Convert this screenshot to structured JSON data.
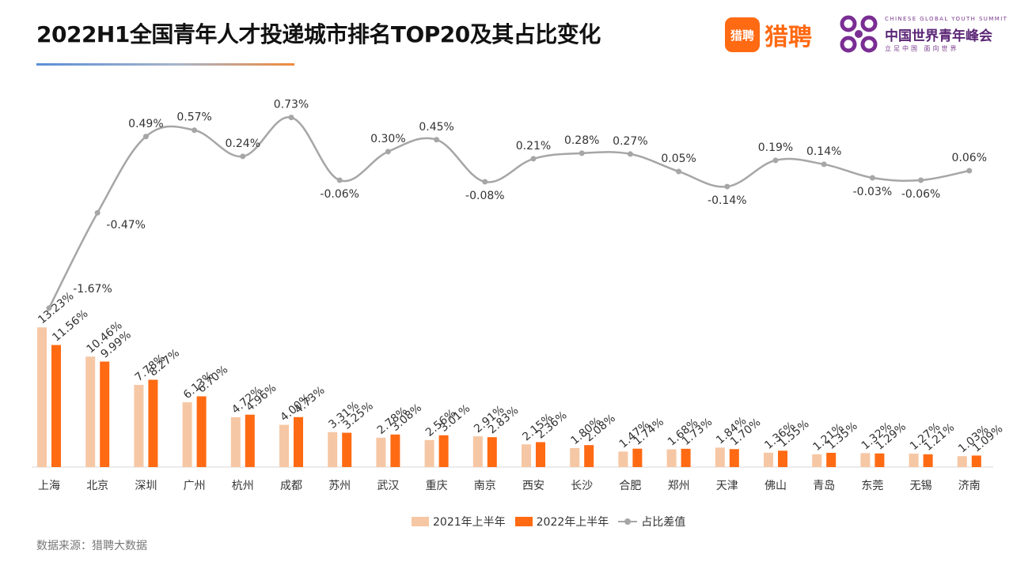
{
  "header": {
    "title": "2022H1全国青年人才投递城市排名TOP20及其占比变化"
  },
  "logos": {
    "liepin_icon_text": "猎聘",
    "liepin_text": "猎聘",
    "summit_en": "CHINESE GLOBAL YOUTH SUMMIT",
    "summit_cn": "中国世界青年峰会",
    "summit_slogan": "立足中国  面向世界"
  },
  "legend": {
    "series1": "2021年上半年",
    "series2": "2022年上半年",
    "series3": "占比差值"
  },
  "source": "数据来源：猎聘大数据",
  "colors": {
    "series_2021": "#f6c7a4",
    "series_2022": "#ff6a13",
    "diff_line": "#a6a6a6",
    "title_accent": "#ff6a13"
  },
  "chart_data": {
    "type": "bar",
    "title": "2022H1全国青年人才投递城市排名TOP20及其占比变化",
    "categories": [
      "上海",
      "北京",
      "深圳",
      "广州",
      "杭州",
      "成都",
      "苏州",
      "武汉",
      "重庆",
      "南京",
      "西安",
      "长沙",
      "合肥",
      "郑州",
      "天津",
      "佛山",
      "青岛",
      "东莞",
      "无锡",
      "济南"
    ],
    "series": [
      {
        "name": "2021年上半年",
        "type": "bar",
        "values": [
          13.23,
          10.46,
          7.78,
          6.13,
          4.72,
          4.0,
          3.31,
          2.78,
          2.56,
          2.91,
          2.15,
          1.8,
          1.47,
          1.68,
          1.84,
          1.36,
          1.21,
          1.32,
          1.27,
          1.03
        ],
        "labels": [
          "13.23%",
          "10.46%",
          "7.78%",
          "6.13%",
          "4.72%",
          "4.00%",
          "3.31%",
          "2.78%",
          "2.56%",
          "2.91%",
          "2.15%",
          "1.80%",
          "1.47%",
          "1.68%",
          "1.84%",
          "1.36%",
          "1.21%",
          "1.32%",
          "1.27%",
          "1.03%"
        ]
      },
      {
        "name": "2022年上半年",
        "type": "bar",
        "values": [
          11.56,
          9.99,
          8.27,
          6.7,
          4.96,
          4.73,
          3.25,
          3.08,
          3.01,
          2.83,
          2.36,
          2.08,
          1.74,
          1.73,
          1.7,
          1.55,
          1.35,
          1.29,
          1.21,
          1.09
        ],
        "labels": [
          "11.56%",
          "9.99%",
          "8.27%",
          "6.70%",
          "4.96%",
          "4.73%",
          "3.25%",
          "3.08%",
          "3.01%",
          "2.83%",
          "2.36%",
          "2.08%",
          "1.74%",
          "1.73%",
          "1.70%",
          "1.55%",
          "1.35%",
          "1.29%",
          "1.21%",
          "1.09%"
        ]
      },
      {
        "name": "占比差值",
        "type": "line",
        "values": [
          -1.67,
          -0.47,
          0.49,
          0.57,
          0.24,
          0.73,
          -0.06,
          0.3,
          0.45,
          -0.08,
          0.21,
          0.28,
          0.27,
          0.05,
          -0.14,
          0.19,
          0.14,
          -0.03,
          -0.06,
          0.06
        ],
        "labels": [
          "-1.67%",
          "-0.47%",
          "0.49%",
          "0.57%",
          "0.24%",
          "0.73%",
          "-0.06%",
          "0.30%",
          "0.45%",
          "-0.08%",
          "0.21%",
          "0.28%",
          "0.27%",
          "0.05%",
          "-0.14%",
          "0.19%",
          "0.14%",
          "-0.03%",
          "-0.06%",
          "0.06%"
        ]
      }
    ],
    "legend": "bottom-center",
    "grid": false
  }
}
